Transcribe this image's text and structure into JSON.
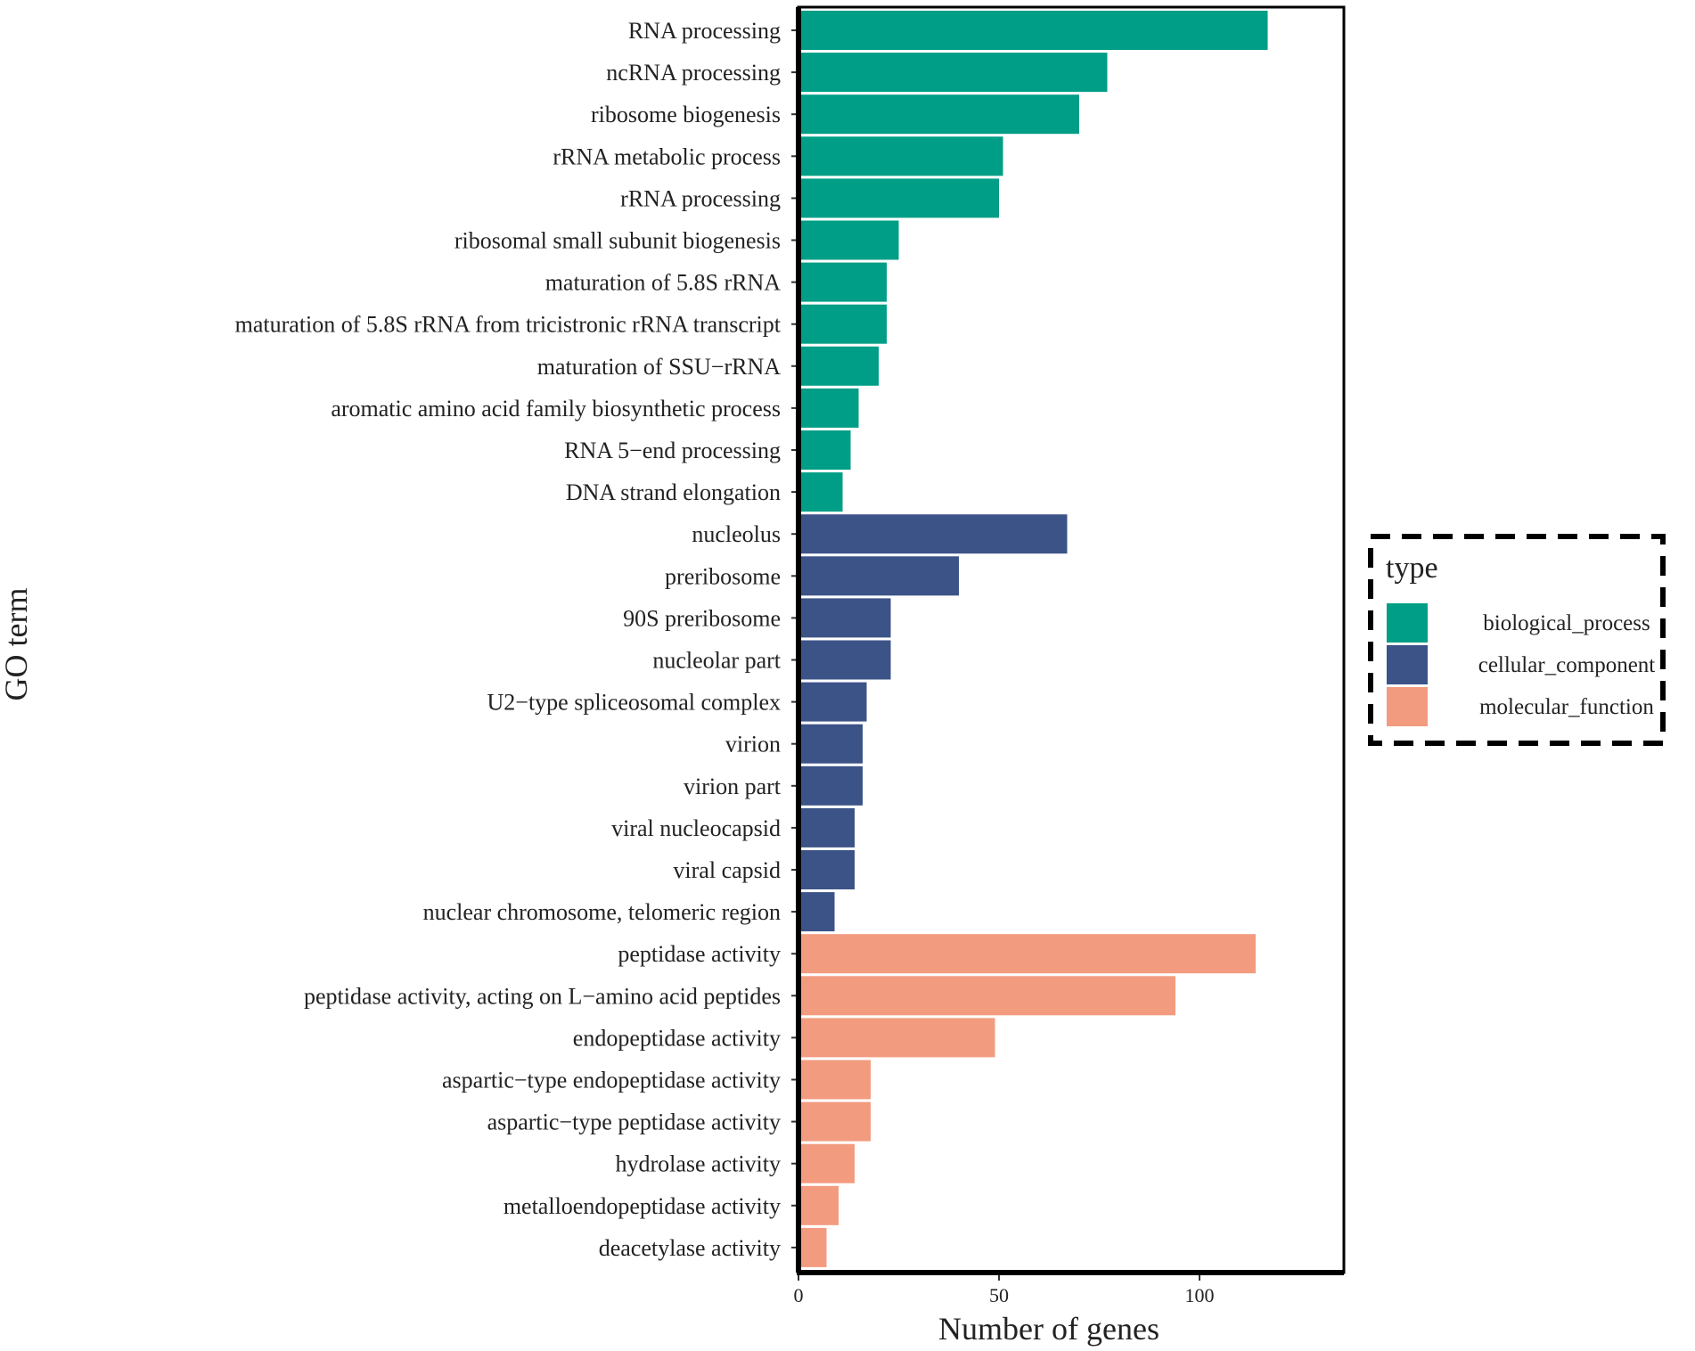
{
  "chart_data": {
    "type": "bar",
    "orientation": "horizontal",
    "title": "",
    "xlabel": "Number of genes",
    "ylabel": "GO term",
    "xlim": [
      0,
      136
    ],
    "xticks": [
      0,
      50,
      100
    ],
    "grid": false,
    "legend": {
      "title": "type",
      "placement": "right",
      "entries": [
        {
          "name": "biological_process",
          "color": "#009e86"
        },
        {
          "name": "cellular_component",
          "color": "#3c5388"
        },
        {
          "name": "molecular_function",
          "color": "#f39b7f"
        }
      ]
    },
    "categories": [
      {
        "label": "RNA processing",
        "value": 117,
        "type": "biological_process"
      },
      {
        "label": "ncRNA processing",
        "value": 77,
        "type": "biological_process"
      },
      {
        "label": "ribosome biogenesis",
        "value": 70,
        "type": "biological_process"
      },
      {
        "label": "rRNA metabolic process",
        "value": 51,
        "type": "biological_process"
      },
      {
        "label": "rRNA processing",
        "value": 50,
        "type": "biological_process"
      },
      {
        "label": "ribosomal small subunit biogenesis",
        "value": 25,
        "type": "biological_process"
      },
      {
        "label": "maturation of 5.8S rRNA",
        "value": 22,
        "type": "biological_process"
      },
      {
        "label": "maturation of 5.8S rRNA from tricistronic rRNA transcript",
        "value": 22,
        "type": "biological_process"
      },
      {
        "label": "maturation of SSU−rRNA",
        "value": 20,
        "type": "biological_process"
      },
      {
        "label": "aromatic amino acid family biosynthetic process",
        "value": 15,
        "type": "biological_process"
      },
      {
        "label": "RNA 5−end processing",
        "value": 13,
        "type": "biological_process"
      },
      {
        "label": "DNA strand elongation",
        "value": 11,
        "type": "biological_process"
      },
      {
        "label": "nucleolus",
        "value": 67,
        "type": "cellular_component"
      },
      {
        "label": "preribosome",
        "value": 40,
        "type": "cellular_component"
      },
      {
        "label": "90S preribosome",
        "value": 23,
        "type": "cellular_component"
      },
      {
        "label": "nucleolar part",
        "value": 23,
        "type": "cellular_component"
      },
      {
        "label": "U2−type spliceosomal complex",
        "value": 17,
        "type": "cellular_component"
      },
      {
        "label": "virion",
        "value": 16,
        "type": "cellular_component"
      },
      {
        "label": "virion part",
        "value": 16,
        "type": "cellular_component"
      },
      {
        "label": "viral nucleocapsid",
        "value": 14,
        "type": "cellular_component"
      },
      {
        "label": "viral capsid",
        "value": 14,
        "type": "cellular_component"
      },
      {
        "label": "nuclear chromosome, telomeric region",
        "value": 9,
        "type": "cellular_component"
      },
      {
        "label": "peptidase activity",
        "value": 114,
        "type": "molecular_function"
      },
      {
        "label": "peptidase activity, acting on L−amino acid peptides",
        "value": 94,
        "type": "molecular_function"
      },
      {
        "label": "endopeptidase activity",
        "value": 49,
        "type": "molecular_function"
      },
      {
        "label": "aspartic−type endopeptidase activity",
        "value": 18,
        "type": "molecular_function"
      },
      {
        "label": "aspartic−type peptidase activity",
        "value": 18,
        "type": "molecular_function"
      },
      {
        "label": "hydrolase activity",
        "value": 14,
        "type": "molecular_function"
      },
      {
        "label": "metalloendopeptidase activity",
        "value": 10,
        "type": "molecular_function"
      },
      {
        "label": "deacetylase activity",
        "value": 7,
        "type": "molecular_function"
      }
    ]
  }
}
